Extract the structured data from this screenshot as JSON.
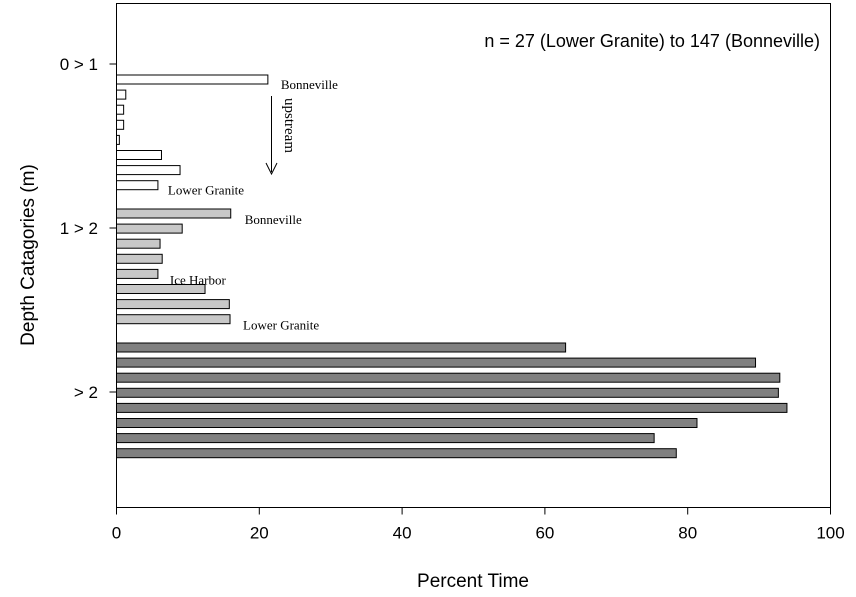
{
  "chart_data": {
    "type": "bar",
    "orientation": "horizontal",
    "annotation": "n = 27 (Lower Granite) to 147 (Bonneville)",
    "xlabel": "Percent Time",
    "ylabel": "Depth Catagories (m)",
    "xlim": [
      0,
      100
    ],
    "xticks": [
      "0",
      "20",
      "40",
      "60",
      "80",
      "100"
    ],
    "arrow_label": "upstream",
    "groups": [
      {
        "label": "0 > 1",
        "fill": "#ffffff",
        "values": [
          21.2,
          1.3,
          1.0,
          1.0,
          0.4,
          6.3,
          8.9,
          5.8
        ],
        "bar_labels": [
          {
            "bar": 0,
            "text": "Bonneville"
          },
          {
            "bar": 7,
            "text": "Lower Granite"
          }
        ]
      },
      {
        "label": "1 > 2",
        "fill": "#c8c8c8",
        "values": [
          16.0,
          9.2,
          6.1,
          6.4,
          5.8,
          12.4,
          15.8,
          15.9
        ],
        "bar_labels": [
          {
            "bar": 0,
            "text": "Bonneville"
          },
          {
            "bar": 4,
            "text": "Ice Harbor"
          },
          {
            "bar": 7,
            "text": "Lower Granite"
          }
        ]
      },
      {
        "label": "> 2",
        "fill": "#808080",
        "values": [
          62.9,
          89.5,
          92.9,
          92.7,
          93.9,
          81.3,
          75.3,
          78.4
        ],
        "bar_labels": []
      }
    ]
  }
}
